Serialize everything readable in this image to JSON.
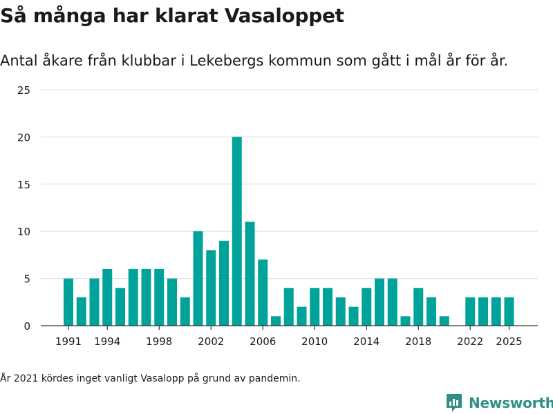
{
  "header": {
    "title": "Så många har klarat Vasaloppet",
    "subtitle": "Antal åkare från klubbar i Lekebergs kommun som gått i mål år för år."
  },
  "footer": {
    "note": "År 2021 kördes inget vanligt Vasalopp på grund av pandemin.",
    "brand": "Newsworthy",
    "brand_icon": "newsworthy-logo-icon"
  },
  "colors": {
    "bar": "#00a39a",
    "grid": "#e2e2e2",
    "axis": "#333333",
    "text": "#1a1a1a",
    "brand": "#2f8f86"
  },
  "chart_data": {
    "type": "bar",
    "title": "Så många har klarat Vasaloppet",
    "subtitle": "Antal åkare från klubbar i Lekebergs kommun som gått i mål år för år.",
    "xlabel": "",
    "ylabel": "",
    "x": [
      1991,
      1992,
      1993,
      1994,
      1995,
      1996,
      1997,
      1998,
      1999,
      2000,
      2001,
      2002,
      2003,
      2004,
      2005,
      2006,
      2007,
      2008,
      2009,
      2010,
      2011,
      2012,
      2013,
      2014,
      2015,
      2016,
      2017,
      2018,
      2019,
      2020,
      2021,
      2022,
      2023,
      2024,
      2025
    ],
    "values": [
      5,
      3,
      5,
      6,
      4,
      6,
      6,
      6,
      5,
      3,
      10,
      8,
      9,
      20,
      11,
      7,
      1,
      4,
      2,
      4,
      4,
      3,
      2,
      4,
      5,
      5,
      1,
      4,
      3,
      1,
      0,
      3,
      3,
      3,
      3
    ],
    "xticks": [
      "1991",
      "1994",
      "1998",
      "2002",
      "2006",
      "2010",
      "2014",
      "2018",
      "2022",
      "2025"
    ],
    "yticks": [
      "0",
      "5",
      "10",
      "15",
      "20",
      "25"
    ],
    "ylim": [
      0,
      25
    ],
    "grid": true,
    "legend": "none"
  }
}
